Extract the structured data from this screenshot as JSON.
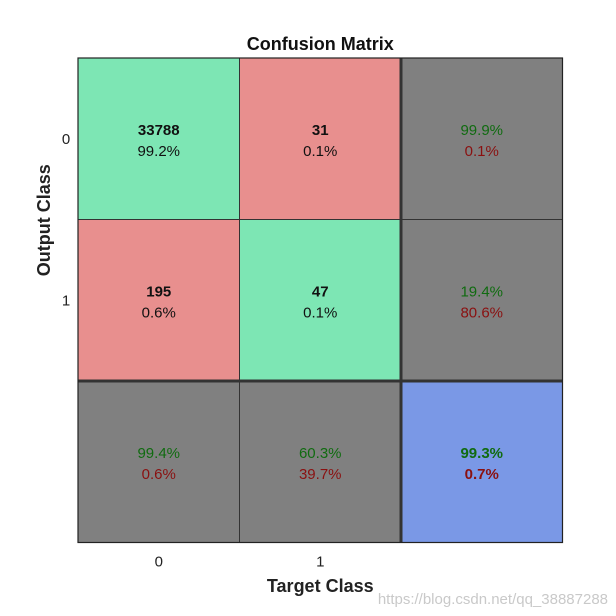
{
  "chart_data": {
    "type": "heatmap",
    "title": "Confusion Matrix",
    "xlabel": "Target Class",
    "ylabel": "Output Class",
    "x_ticks": [
      "0",
      "1"
    ],
    "y_ticks": [
      "0",
      "1"
    ],
    "cells": [
      [
        {
          "count": "33788",
          "pct": "99.2%"
        },
        {
          "count": "31",
          "pct": "0.1%"
        }
      ],
      [
        {
          "count": "195",
          "pct": "0.6%"
        },
        {
          "count": "47",
          "pct": "0.1%"
        }
      ]
    ],
    "row_summary": [
      {
        "good": "99.9%",
        "bad": "0.1%"
      },
      {
        "good": "19.4%",
        "bad": "80.6%"
      }
    ],
    "col_summary": [
      {
        "good": "99.4%",
        "bad": "0.6%"
      },
      {
        "good": "60.3%",
        "bad": "39.7%"
      }
    ],
    "overall": {
      "good": "99.3%",
      "bad": "0.7%"
    },
    "colors": {
      "correct": "#7de6b4",
      "incorrect": "#e88f8e",
      "summary": "#808080",
      "overall": "#7a98e6",
      "good_text": "#106b10",
      "bad_text": "#8a1010"
    }
  },
  "watermark": "https://blog.csdn.net/qq_38887288"
}
